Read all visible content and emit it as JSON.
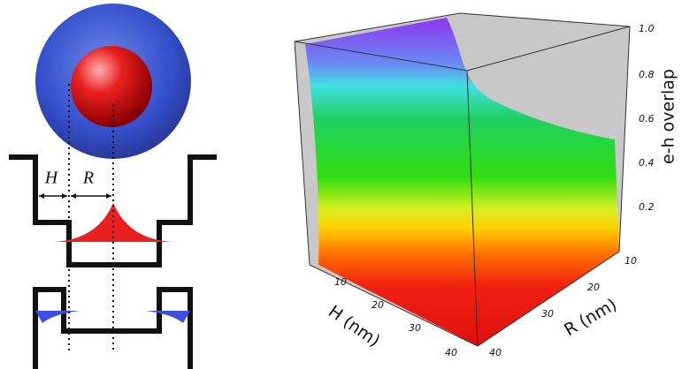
{
  "schematic": {
    "labels": [
      "H",
      "R"
    ]
  },
  "plot": {
    "z_axis": {
      "label": "e-h overlap",
      "ticks": [
        "0.2",
        "0.4",
        "0.6",
        "0.8",
        "1.0"
      ]
    },
    "h_axis": {
      "label": "H (nm)",
      "ticks": [
        "10",
        "20",
        "30",
        "40"
      ]
    },
    "r_axis": {
      "label": "R (nm)",
      "ticks": [
        "10",
        "20",
        "30",
        "40"
      ]
    }
  }
}
